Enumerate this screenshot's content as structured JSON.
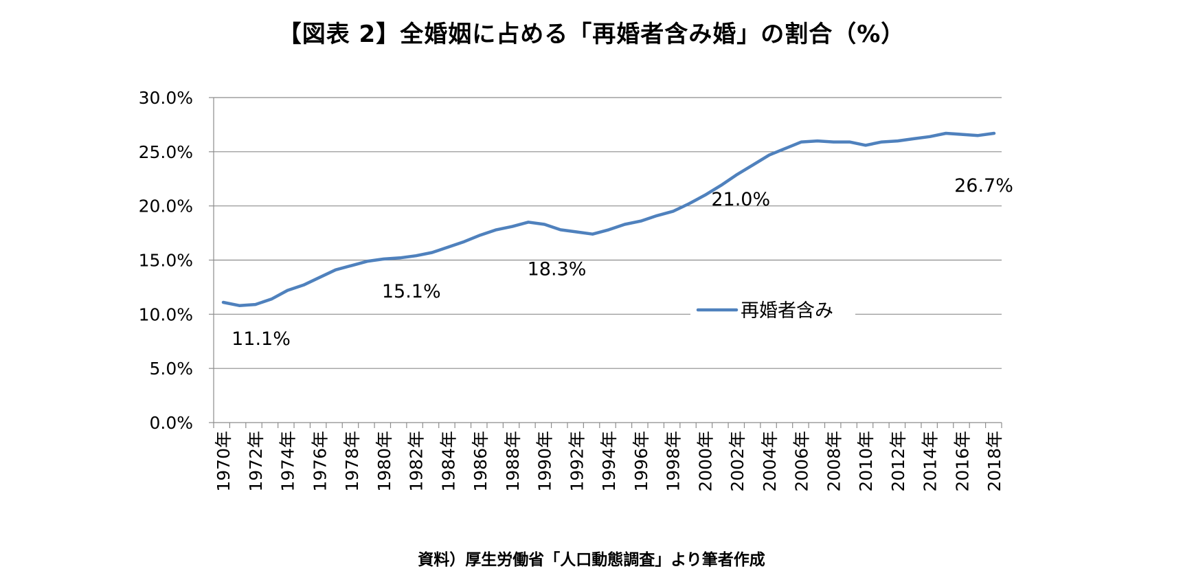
{
  "chart_data": {
    "type": "line",
    "title": "【図表 2】全婚姻に占める「再婚者含み婚」の割合（%）",
    "source": "資料）厚生労働省「人口動態調査」より筆者作成",
    "x_unit_suffix": "年",
    "x": [
      1970,
      1971,
      1972,
      1973,
      1974,
      1975,
      1976,
      1977,
      1978,
      1979,
      1980,
      1981,
      1982,
      1983,
      1984,
      1985,
      1986,
      1987,
      1988,
      1989,
      1990,
      1991,
      1992,
      1993,
      1994,
      1995,
      1996,
      1997,
      1998,
      1999,
      2000,
      2001,
      2002,
      2003,
      2004,
      2005,
      2006,
      2007,
      2008,
      2009,
      2010,
      2011,
      2012,
      2013,
      2014,
      2015,
      2016,
      2017,
      2018
    ],
    "series": [
      {
        "name": "再婚者含み",
        "color": "#4f81bd",
        "values": [
          11.1,
          10.8,
          10.9,
          11.4,
          12.2,
          12.7,
          13.4,
          14.1,
          14.5,
          14.9,
          15.1,
          15.2,
          15.4,
          15.7,
          16.2,
          16.7,
          17.3,
          17.8,
          18.1,
          18.5,
          18.3,
          17.8,
          17.6,
          17.4,
          17.8,
          18.3,
          18.6,
          19.1,
          19.5,
          20.2,
          21.0,
          21.9,
          22.9,
          23.8,
          24.7,
          25.3,
          25.9,
          26.0,
          25.9,
          25.9,
          25.6,
          25.9,
          26.0,
          26.2,
          26.4,
          26.7,
          26.6,
          26.5,
          26.7
        ]
      }
    ],
    "data_labels": [
      {
        "x": 1970,
        "text": "11.1%"
      },
      {
        "x": 1980,
        "text": "15.1%"
      },
      {
        "x": 1990,
        "text": "18.3%"
      },
      {
        "x": 2000,
        "text": "21.0%"
      },
      {
        "x": 2018,
        "text": "26.7%"
      }
    ],
    "y_ticks": [
      "0.0%",
      "5.0%",
      "10.0%",
      "15.0%",
      "20.0%",
      "25.0%",
      "30.0%"
    ],
    "x_tick_years": [
      1970,
      1972,
      1974,
      1976,
      1978,
      1980,
      1982,
      1984,
      1986,
      1988,
      1990,
      1992,
      1994,
      1996,
      1998,
      2000,
      2002,
      2004,
      2006,
      2008,
      2010,
      2012,
      2014,
      2016,
      2018
    ],
    "ylim": [
      0,
      30
    ],
    "y_step": 5,
    "grid": true,
    "legend_position": "center-right"
  }
}
